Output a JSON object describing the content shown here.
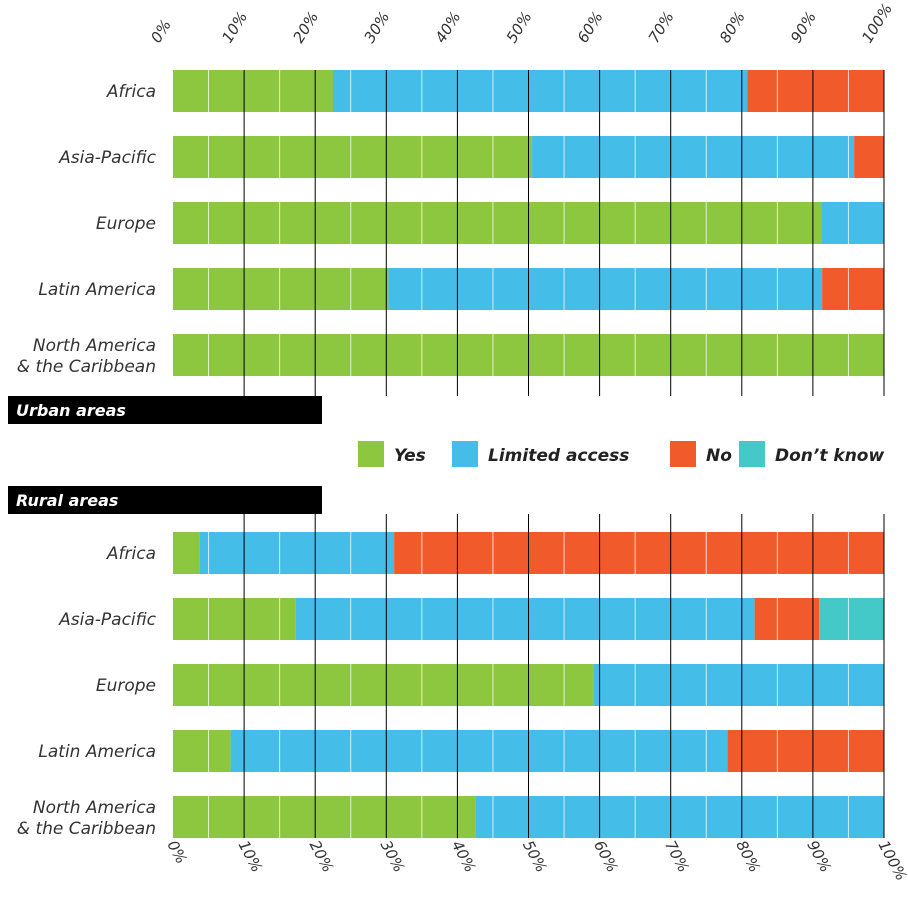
{
  "colors": {
    "yes": "#8dc63f",
    "limited": "#44bde8",
    "no": "#f15a2b",
    "dont_know": "#45c8c8",
    "panel_bg": "#000000"
  },
  "legend": [
    {
      "key": "yes",
      "label": "Yes"
    },
    {
      "key": "limited",
      "label": "Limited access"
    },
    {
      "key": "no",
      "label": "No"
    },
    {
      "key": "dont_know",
      "label": "Don’t know"
    }
  ],
  "chart_data": [
    {
      "type": "bar",
      "orientation": "horizontal",
      "stacked": true,
      "title": "Urban areas",
      "xlim": [
        0,
        100
      ],
      "x_ticks": [
        "0%",
        "10%",
        "20%",
        "30%",
        "40%",
        "50%",
        "60%",
        "70%",
        "80%",
        "90%",
        "100%"
      ],
      "categories": [
        [
          "Africa"
        ],
        [
          "Asia-Pacific"
        ],
        [
          "Europe"
        ],
        [
          "Latin America"
        ],
        [
          "North America",
          "& the Caribbean"
        ]
      ],
      "series": [
        {
          "name": "Yes",
          "key": "yes",
          "values": [
            22.5,
            50.5,
            91.2,
            30.3,
            100
          ]
        },
        {
          "name": "Limited access",
          "key": "limited",
          "values": [
            58.3,
            45.3,
            8.8,
            61.0,
            0
          ]
        },
        {
          "name": "No",
          "key": "no",
          "values": [
            19.2,
            4.2,
            0,
            8.7,
            0
          ]
        },
        {
          "name": "Don’t know",
          "key": "dont_know",
          "values": [
            0,
            0,
            0,
            0,
            0
          ]
        }
      ],
      "grid": true
    },
    {
      "type": "bar",
      "orientation": "horizontal",
      "stacked": true,
      "title": "Rural areas",
      "xlim": [
        0,
        100
      ],
      "x_ticks": [
        "0%",
        "10%",
        "20%",
        "30%",
        "40%",
        "50%",
        "60%",
        "70%",
        "80%",
        "90%",
        "100%"
      ],
      "categories": [
        [
          "Africa"
        ],
        [
          "Asia-Pacific"
        ],
        [
          "Europe"
        ],
        [
          "Latin America"
        ],
        [
          "North America",
          "& the Caribbean"
        ]
      ],
      "series": [
        {
          "name": "Yes",
          "key": "yes",
          "values": [
            3.7,
            17.2,
            59.1,
            8.1,
            42.5
          ]
        },
        {
          "name": "Limited access",
          "key": "limited",
          "values": [
            27.4,
            64.6,
            40.9,
            69.9,
            57.5
          ]
        },
        {
          "name": "No",
          "key": "no",
          "values": [
            68.9,
            9.1,
            0,
            22.0,
            0
          ]
        },
        {
          "name": "Don’t know",
          "key": "dont_know",
          "values": [
            0,
            9.1,
            0,
            0,
            0
          ]
        }
      ],
      "grid": true
    }
  ]
}
